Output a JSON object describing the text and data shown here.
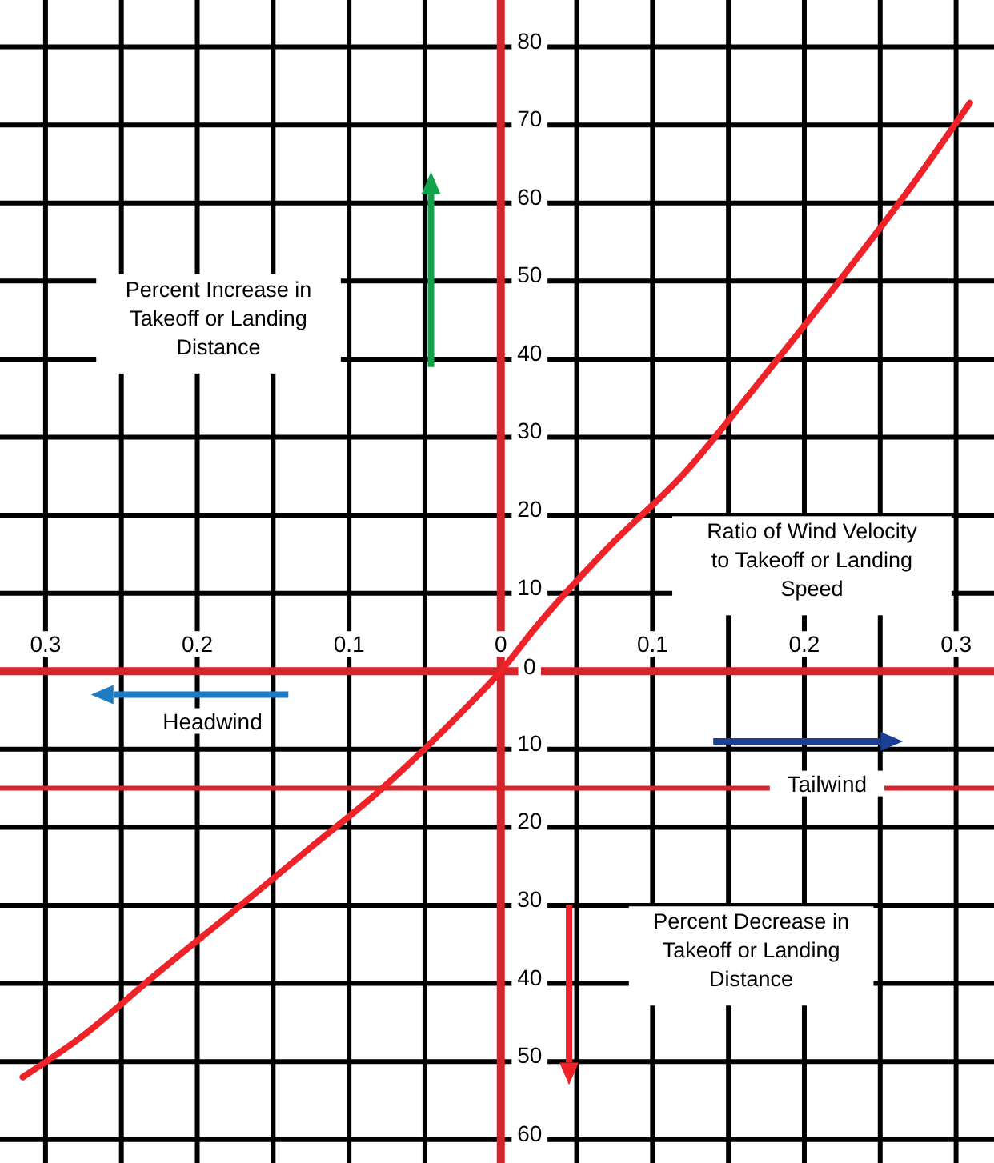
{
  "chart_data": {
    "type": "line",
    "x": [
      -0.315,
      -0.276,
      -0.227,
      -0.177,
      -0.126,
      -0.081,
      -0.024,
      0,
      0.023,
      0.071,
      0.121,
      0.17,
      0.221,
      0.27,
      0.309
    ],
    "series": [
      {
        "color": "#ee2229",
        "values": [
          -52,
          -46.8,
          -38.8,
          -30.9,
          -22.7,
          -15.5,
          -4.9,
          0,
          5.6,
          15.9,
          25.4,
          37,
          49.5,
          62,
          72.8
        ]
      }
    ],
    "xlim": [
      -0.33,
      0.325
    ],
    "ylim": [
      -63,
      86
    ],
    "xticks": [
      {
        "value": -0.3,
        "label": "0.3"
      },
      {
        "value": -0.25,
        "label": null
      },
      {
        "value": -0.2,
        "label": "0.2"
      },
      {
        "value": -0.15,
        "label": null
      },
      {
        "value": -0.1,
        "label": "0.1"
      },
      {
        "value": -0.05,
        "label": null
      },
      0,
      {
        "value": 0.05,
        "label": null
      },
      0.1,
      {
        "value": 0.15,
        "label": null
      },
      0.2,
      {
        "value": 0.25,
        "label": null
      },
      0.3
    ],
    "yticks": [
      {
        "value": -60,
        "label": "60"
      },
      {
        "value": -50,
        "label": "50"
      },
      {
        "value": -40,
        "label": "40"
      },
      {
        "value": -30,
        "label": "30"
      },
      {
        "value": -20,
        "label": "20"
      },
      {
        "value": -10,
        "label": "10"
      },
      0,
      10,
      20,
      30,
      40,
      50,
      60,
      70,
      80
    ],
    "grid": true,
    "marker": "none",
    "line_style": "solid",
    "ref_lines": [
      {
        "axis": "y",
        "value": -15,
        "color": "#d8232a"
      }
    ],
    "annotations": [
      "Percent Increase in Takeoff or Landing Distance",
      "Ratio of Wind Velocity to Takeoff or Landing Speed",
      "Headwind",
      "Tailwind",
      "Percent Decrease in Takeoff or Landing Distance"
    ]
  }
}
